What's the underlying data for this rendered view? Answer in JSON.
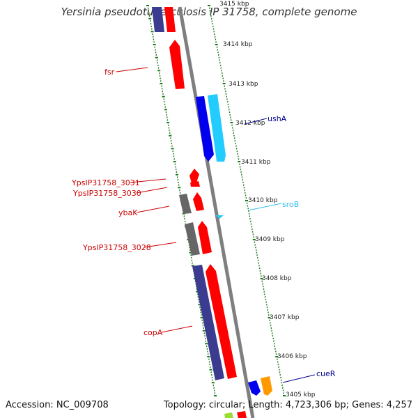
{
  "title": "Yersinia pseudotuberculosis IP 31758, complete genome",
  "accession": "Accession: NC_009708",
  "summary": "Topology: circular; Length: 4,723,306 bp; Genes: 4,257",
  "colors": {
    "backbone": "#7f7f7f",
    "forward_gene": "#ff0000",
    "reverse_gene": "#3b3b8f",
    "ticks": "#1a7a1a",
    "ncrna": "#33c3f0",
    "blue_gene": "#0000ee",
    "cyan_gene": "#22ccff",
    "gray_gene": "#666666",
    "orange_gene": "#ff9900",
    "red_label": "#cc0000",
    "blue_label": "#00008b",
    "cyan_label": "#33bbee"
  },
  "kbp_marks": [
    {
      "label": "3415 kbp"
    },
    {
      "label": "3414 kbp"
    },
    {
      "label": "3413 kbp"
    },
    {
      "label": "3412 kbp"
    },
    {
      "label": "3411 kbp"
    },
    {
      "label": "3410 kbp"
    },
    {
      "label": "3409 kbp"
    },
    {
      "label": "3408 kbp"
    },
    {
      "label": "3407 kbp"
    },
    {
      "label": "3406 kbp"
    },
    {
      "label": "3405 kbp"
    }
  ],
  "gene_labels": [
    {
      "name": "fsr",
      "color": "red_label"
    },
    {
      "name": "ushA",
      "color": "blue_label"
    },
    {
      "name": "YpsIP31758_3031",
      "color": "red_label"
    },
    {
      "name": "YpsIP31758_3030",
      "color": "red_label"
    },
    {
      "name": "sroB",
      "color": "cyan_label"
    },
    {
      "name": "ybaK",
      "color": "red_label"
    },
    {
      "name": "YpsIP31758_3028",
      "color": "red_label"
    },
    {
      "name": "copA",
      "color": "red_label"
    },
    {
      "name": "cueR",
      "color": "blue_label"
    }
  ]
}
